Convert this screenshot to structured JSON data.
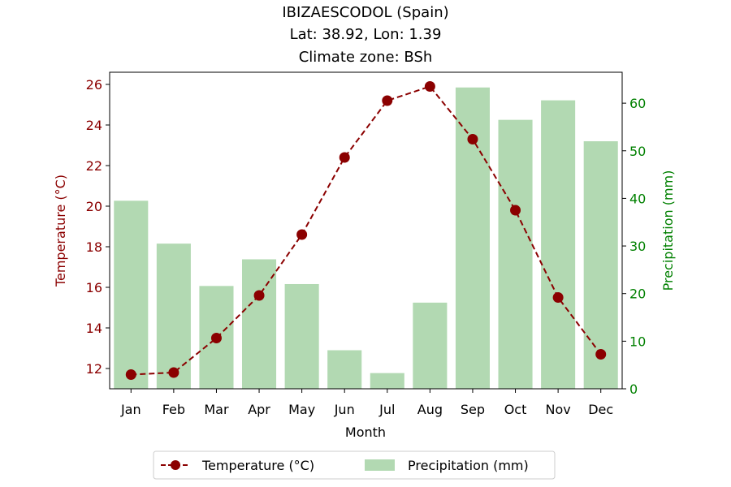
{
  "chart_data": {
    "type": "bar+line",
    "title_lines": [
      "IBIZAESCODOL (Spain)",
      "Lat: 38.92, Lon: 1.39",
      "Climate zone: BSh"
    ],
    "xlabel": "Month",
    "categories": [
      "Jan",
      "Feb",
      "Mar",
      "Apr",
      "May",
      "Jun",
      "Jul",
      "Aug",
      "Sep",
      "Oct",
      "Nov",
      "Dec"
    ],
    "temperature": {
      "name": "Temperature (°C)",
      "axis_label": "Temperature (°C)",
      "color": "#8b0000",
      "values": [
        11.7,
        11.8,
        13.5,
        15.6,
        18.6,
        22.4,
        25.2,
        25.9,
        23.3,
        19.8,
        15.5,
        12.7
      ],
      "ylim": [
        11.0,
        26.6
      ],
      "ticks": [
        12,
        14,
        16,
        18,
        20,
        22,
        24,
        26
      ]
    },
    "precipitation": {
      "name": "Precipitation (mm)",
      "axis_label": "Precipitation (mm)",
      "color": "#008000",
      "bar_color": "#b2d9b2",
      "values": [
        39.5,
        30.5,
        21.6,
        27.2,
        22.0,
        8.1,
        3.3,
        18.1,
        63.3,
        56.5,
        60.6,
        52.0
      ],
      "ylim": [
        0,
        66.5
      ],
      "ticks": [
        0,
        10,
        20,
        30,
        40,
        50,
        60
      ]
    },
    "legend": {
      "position": "bottom-center",
      "entries": [
        "Temperature (°C)",
        "Precipitation (mm)"
      ]
    }
  }
}
